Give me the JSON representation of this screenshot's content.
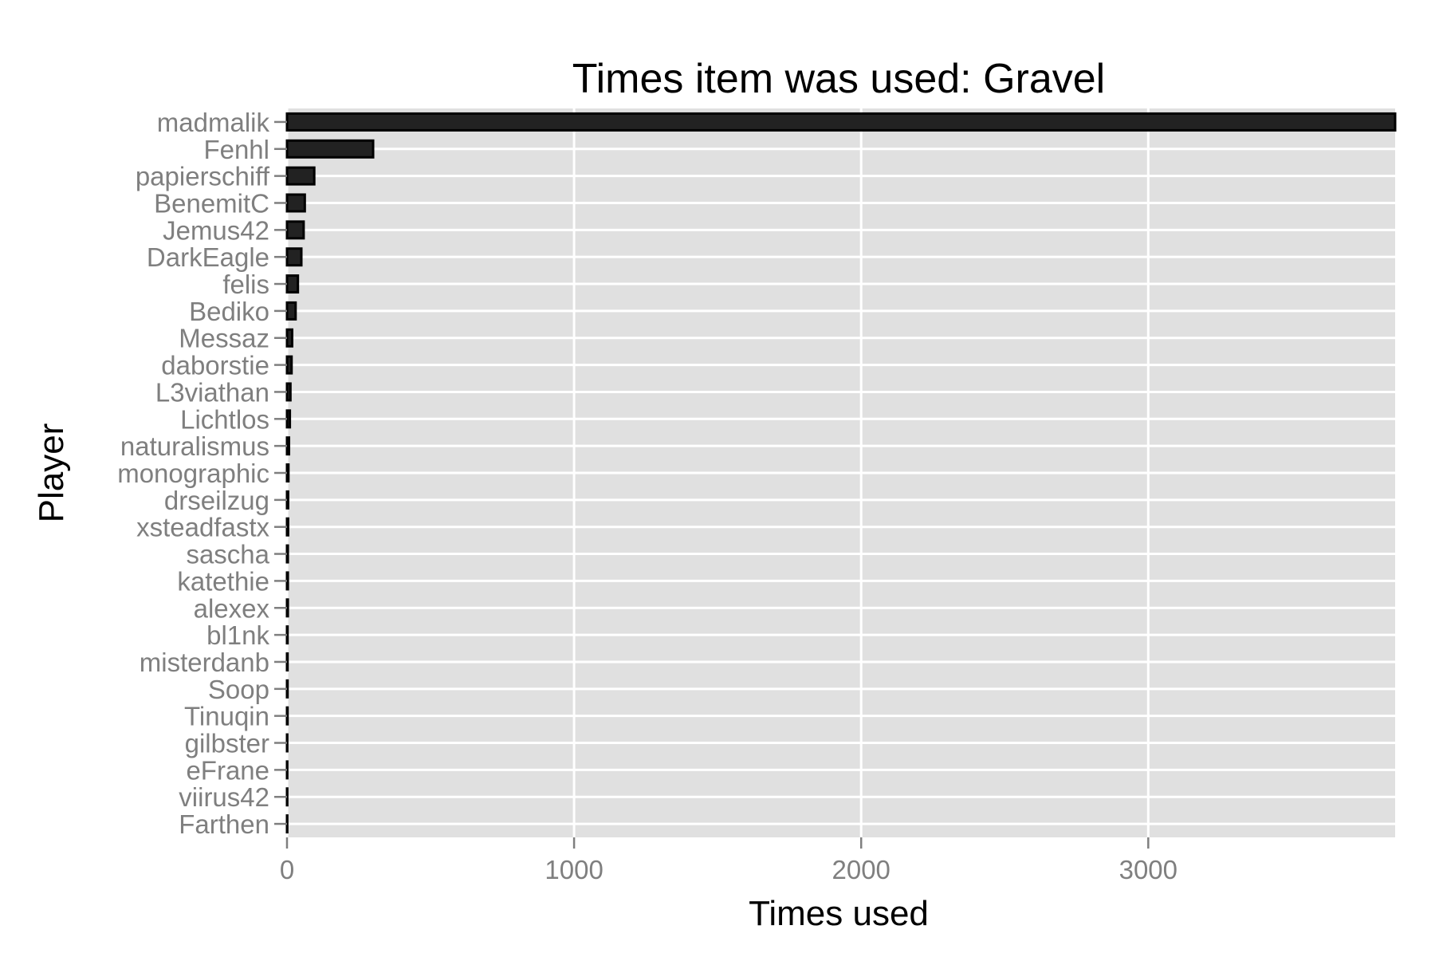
{
  "chart_data": {
    "type": "bar",
    "orientation": "horizontal",
    "title": "Times item was used: Gravel",
    "xlabel": "Times used",
    "ylabel": "Player",
    "xlim": [
      0,
      3860
    ],
    "x_ticks": [
      0,
      1000,
      2000,
      3000
    ],
    "x_tick_labels": [
      "0",
      "1000",
      "2000",
      "3000"
    ],
    "grid": true,
    "legend": "none",
    "colors": {
      "panel": "#e0e0e0",
      "bar_fill": "#222222",
      "bar_stroke": "#000000",
      "grid": "#ffffff",
      "tick_text": "#7f7f7f"
    },
    "categories": [
      "madmalik",
      "Fenhl",
      "papierschiff",
      "BenemitC",
      "Jemus42",
      "DarkEagle",
      "felis",
      "Bediko",
      "Messaz",
      "daborstie",
      "L3viathan",
      "Lichtlos",
      "naturalismus",
      "monographic",
      "drseilzug",
      "xsteadfastx",
      "sascha",
      "katethie",
      "alexex",
      "bl1nk",
      "misterdanb",
      "Soop",
      "Tinuqin",
      "gilbster",
      "eFrane",
      "viirus42",
      "Farthen"
    ],
    "values": [
      3860,
      300,
      95,
      62,
      58,
      50,
      38,
      30,
      18,
      16,
      12,
      10,
      7,
      5,
      4,
      4,
      3,
      3,
      3,
      2,
      2,
      2,
      2,
      1,
      1,
      1,
      1
    ]
  }
}
